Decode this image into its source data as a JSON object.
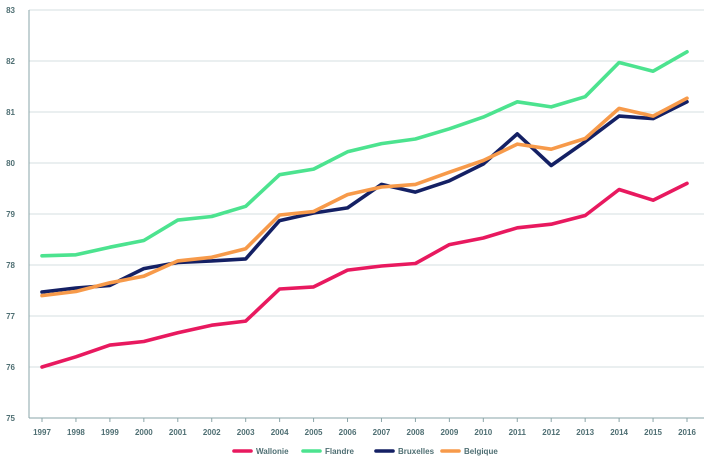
{
  "chart_data": {
    "type": "line",
    "title": "",
    "xlabel": "",
    "ylabel": "",
    "categories": [
      "1997",
      "1998",
      "1999",
      "2000",
      "2001",
      "2002",
      "2003",
      "2004",
      "2005",
      "2006",
      "2007",
      "2008",
      "2009",
      "2010",
      "2011",
      "2012",
      "2013",
      "2014",
      "2015",
      "2016"
    ],
    "ylim": [
      75,
      83
    ],
    "yticks": [
      75,
      76,
      77,
      78,
      79,
      80,
      81,
      82,
      83
    ],
    "grid": "horizontal",
    "legend_position": "bottom",
    "series": [
      {
        "name": "Wallonie",
        "color": "#e8195f",
        "values": [
          76.0,
          76.2,
          76.43,
          76.5,
          76.67,
          76.82,
          76.9,
          77.53,
          77.57,
          77.9,
          77.98,
          78.03,
          78.4,
          78.53,
          78.73,
          78.8,
          78.97,
          79.48,
          79.27,
          79.6
        ]
      },
      {
        "name": "Flandre",
        "color": "#4ce38f",
        "values": [
          78.18,
          78.2,
          78.35,
          78.48,
          78.88,
          78.95,
          79.15,
          79.77,
          79.88,
          80.22,
          80.38,
          80.47,
          80.67,
          80.9,
          81.2,
          81.1,
          81.3,
          81.97,
          81.8,
          82.18
        ]
      },
      {
        "name": "Bruxelles",
        "color": "#142064",
        "values": [
          77.47,
          77.55,
          77.6,
          77.93,
          78.05,
          78.08,
          78.12,
          78.87,
          79.02,
          79.12,
          79.58,
          79.43,
          79.65,
          79.98,
          80.57,
          79.95,
          80.42,
          80.92,
          80.87,
          81.2
        ]
      },
      {
        "name": "Belgique",
        "color": "#f79a4a",
        "values": [
          77.4,
          77.48,
          77.65,
          77.78,
          78.08,
          78.15,
          78.32,
          78.98,
          79.05,
          79.38,
          79.53,
          79.58,
          79.82,
          80.05,
          80.37,
          80.27,
          80.48,
          81.07,
          80.92,
          81.27
        ]
      }
    ]
  }
}
